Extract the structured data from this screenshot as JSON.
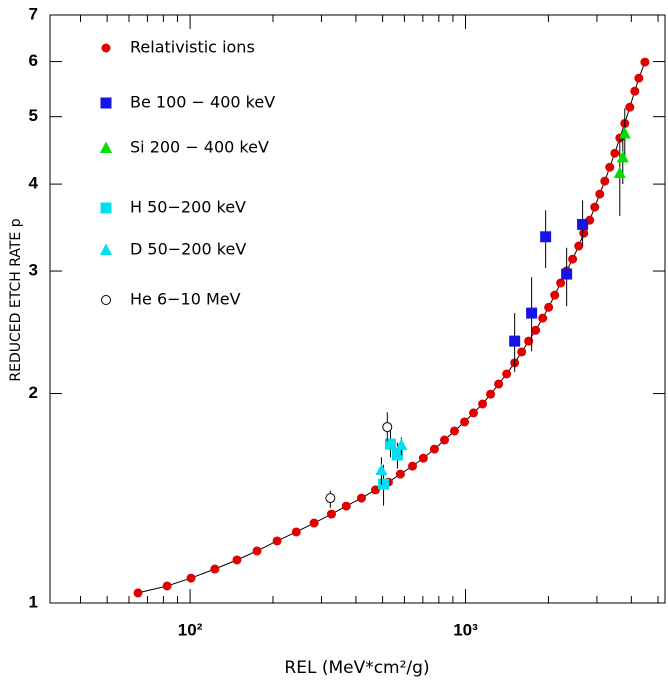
{
  "chart_data": {
    "type": "scatter",
    "x_label": "REL (MeV*cm²/g)",
    "y_label": "REDUCED ETCH RATE   p",
    "log_x": true,
    "log_y": true,
    "xlim": [
      31,
      5300
    ],
    "ylim": [
      1,
      7
    ],
    "xticks": [
      {
        "value": 100,
        "label": "10²"
      },
      {
        "value": 1000,
        "label": "10³"
      }
    ],
    "xminorticks": [
      40,
      50,
      60,
      70,
      80,
      90,
      200,
      300,
      400,
      500,
      600,
      700,
      800,
      900,
      2000,
      3000,
      4000,
      5000
    ],
    "yticks": [
      1,
      2,
      3,
      4,
      5,
      6,
      7
    ],
    "legend": "upper-left",
    "series": [
      {
        "name": "Relativistic ions",
        "color": "#e00000",
        "marker": "circle",
        "line": "#000000",
        "x": [
          64.7,
          82.5,
          100.8,
          123,
          148,
          175,
          207,
          243,
          282,
          326,
          369,
          419,
          471,
          525,
          580,
          642,
          703,
          771,
          839,
          912,
          992,
          1069,
          1153,
          1233,
          1319,
          1410,
          1508,
          1599,
          1695,
          1797,
          1906,
          2004,
          2108,
          2215,
          2329,
          2449,
          2576,
          2687,
          2825,
          2946,
          3072,
          3204,
          3340,
          3483,
          3632,
          3787,
          3950,
          4118,
          4260,
          4480
        ],
        "values": [
          1.034,
          1.058,
          1.086,
          1.119,
          1.153,
          1.188,
          1.228,
          1.265,
          1.303,
          1.342,
          1.378,
          1.415,
          1.454,
          1.492,
          1.532,
          1.573,
          1.615,
          1.664,
          1.715,
          1.767,
          1.821,
          1.876,
          1.932,
          1.996,
          2.064,
          2.134,
          2.214,
          2.295,
          2.379,
          2.466,
          2.567,
          2.661,
          2.77,
          2.884,
          3.002,
          3.121,
          3.259,
          3.4,
          3.55,
          3.707,
          3.87,
          4.04,
          4.23,
          4.43,
          4.66,
          4.89,
          5.16,
          5.44,
          5.68,
          5.99
        ]
      },
      {
        "name": "Be 100 − 400 keV",
        "color": "#1414e6",
        "marker": "square",
        "x": [
          1508,
          1738,
          1954,
          2329,
          2661
        ],
        "values": [
          2.379,
          2.61,
          3.36,
          2.97,
          3.5
        ],
        "y_low": [
          2.148,
          2.3,
          3.03,
          2.67,
          3.26
        ],
        "y_high": [
          2.61,
          2.94,
          3.67,
          3.24,
          3.79
        ]
      },
      {
        "name": "Si 200 − 400 keV",
        "color": "#00e000",
        "marker": "triangle",
        "x": [
          3787,
          3724,
          3632
        ],
        "values": [
          4.73,
          4.37,
          4.15
        ],
        "y_low": [
          4.33,
          4.0,
          3.6
        ],
        "y_high": [
          5.14,
          4.75,
          4.7
        ]
      },
      {
        "name": "H 50−200 keV",
        "color": "#00e0f0",
        "marker": "square",
        "x": [
          504,
          534,
          566
        ],
        "values": [
          1.482,
          1.692,
          1.632
        ],
        "y_low": [
          1.38,
          1.62,
          1.56
        ],
        "y_high": [
          1.58,
          1.77,
          1.7
        ]
      },
      {
        "name": "D 50−200 keV",
        "color": "#00e0f0",
        "marker": "triangle",
        "x": [
          495,
          585
        ],
        "values": [
          1.552,
          1.687
        ],
        "y_low": [
          1.48,
          1.63
        ],
        "y_high": [
          1.62,
          1.73
        ]
      },
      {
        "name": "He 6−10 MeV",
        "color": "#000000",
        "marker": "open-circle",
        "x": [
          323,
          520
        ],
        "values": [
          1.415,
          1.79
        ],
        "y_low": [
          1.37,
          1.71
        ],
        "y_high": [
          1.45,
          1.88
        ]
      }
    ]
  }
}
